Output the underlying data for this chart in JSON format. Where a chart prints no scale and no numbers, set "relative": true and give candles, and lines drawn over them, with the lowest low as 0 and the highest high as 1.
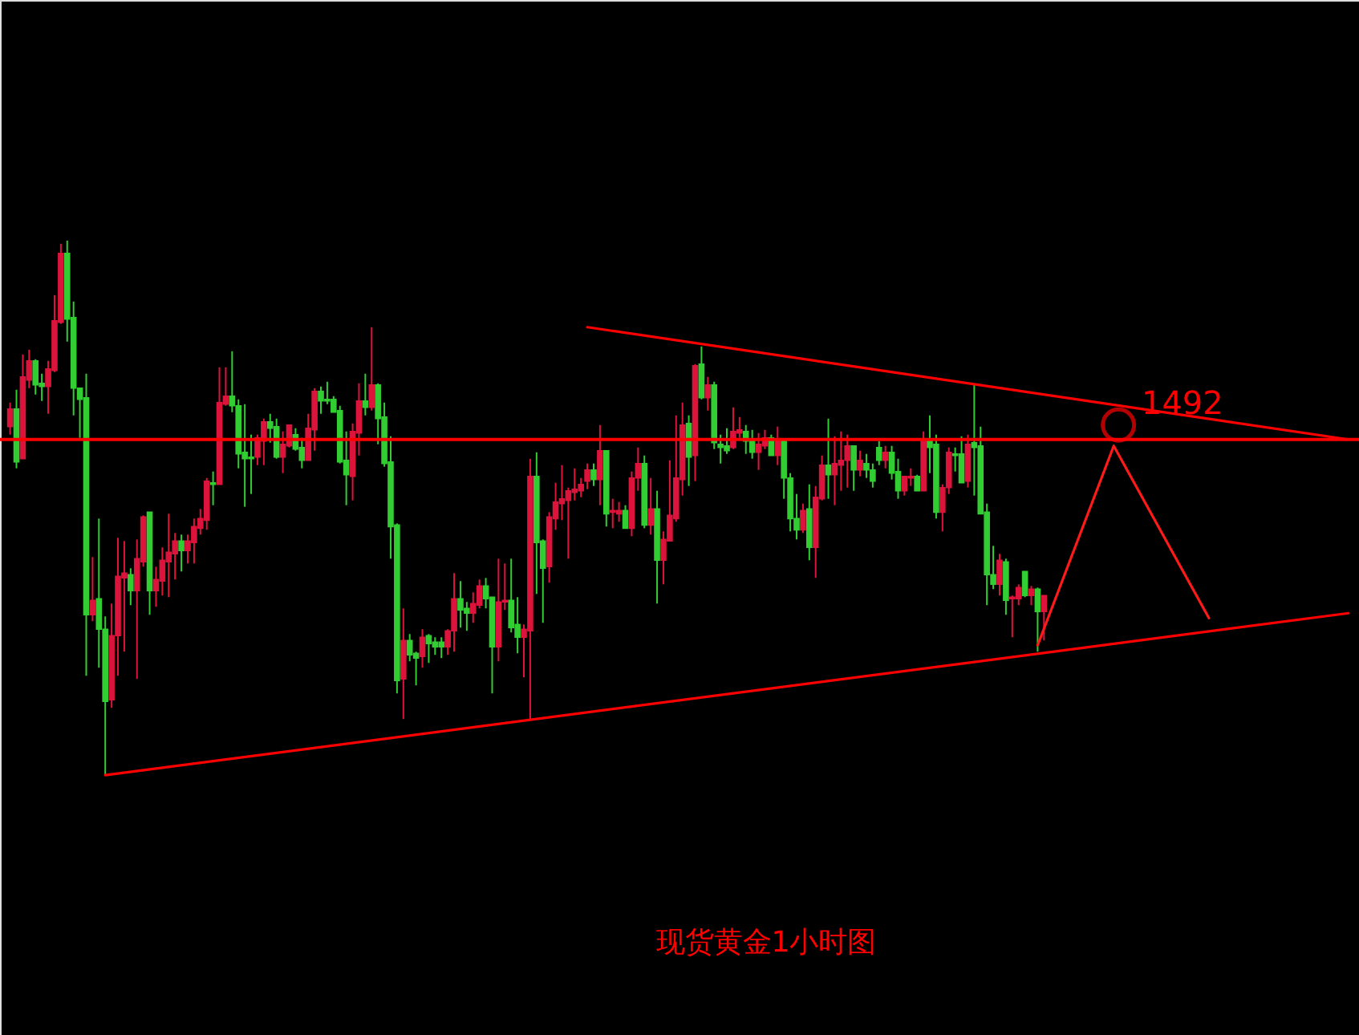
{
  "chart_data": {
    "type": "candlestick",
    "relative": true,
    "title": "现货黄金1小时图",
    "tick_labels": false,
    "categories": [
      null,
      null,
      null,
      null,
      null,
      null,
      null,
      null,
      null,
      null,
      null,
      null,
      null,
      null,
      null,
      null,
      null,
      null,
      null,
      null,
      null,
      null,
      null,
      null,
      null,
      null,
      null,
      null,
      null,
      null,
      null,
      null,
      null,
      null,
      null,
      null,
      null,
      null,
      null,
      null,
      null,
      null,
      null,
      null,
      null,
      null,
      null,
      null,
      null,
      null,
      null,
      null,
      null,
      null,
      null,
      null,
      null,
      null,
      null,
      null,
      null,
      null,
      null,
      null,
      null,
      null,
      null,
      null,
      null,
      null,
      null,
      null,
      null,
      null,
      null,
      null,
      null,
      null,
      null,
      null,
      null,
      null,
      null,
      null,
      null,
      null,
      null,
      null,
      null,
      null,
      null,
      null,
      null,
      null,
      null,
      null,
      null,
      null,
      null,
      null,
      null,
      null,
      null,
      null,
      null,
      null,
      null,
      null,
      null,
      null,
      null,
      null,
      null,
      null,
      null,
      null,
      null,
      null,
      null,
      null,
      null,
      null,
      null,
      null,
      null,
      null,
      null,
      null,
      null,
      null,
      null,
      null,
      null,
      null,
      null,
      null,
      null,
      null,
      null,
      null,
      null,
      null,
      null,
      null,
      null,
      null,
      null,
      null,
      null,
      null,
      null,
      null,
      null,
      null,
      null,
      null,
      null,
      null,
      null,
      null,
      null,
      null,
      null,
      null,
      null,
      null,
      null,
      null,
      null,
      null,
      null,
      null,
      null,
      null,
      null,
      null,
      null,
      null,
      null,
      null,
      null,
      null,
      null,
      null,
      null,
      null,
      null,
      null,
      null,
      null,
      null,
      null,
      null,
      null,
      null,
      null,
      null,
      null,
      null,
      null,
      null,
      null,
      null,
      null,
      null,
      null,
      null,
      null,
      null,
      null,
      null,
      null
    ],
    "ohlc": [
      [
        0.652,
        0.697,
        0.637,
        0.685
      ],
      [
        0.685,
        0.721,
        0.574,
        0.586
      ],
      [
        0.592,
        0.787,
        0.592,
        0.745
      ],
      [
        0.739,
        0.796,
        0.724,
        0.775
      ],
      [
        0.775,
        0.778,
        0.712,
        0.73
      ],
      [
        0.733,
        0.751,
        0.7,
        0.727
      ],
      [
        0.727,
        0.775,
        0.676,
        0.76
      ],
      [
        0.757,
        0.898,
        0.754,
        0.85
      ],
      [
        0.847,
        0.994,
        0.844,
        0.976
      ],
      [
        0.976,
        1,
        0.811,
        0.853
      ],
      [
        0.856,
        0.886,
        0.673,
        0.724
      ],
      [
        0.724,
        0.724,
        0.631,
        0.703
      ],
      [
        0.706,
        0.751,
        0.186,
        0.3
      ],
      [
        0.3,
        0.408,
        0.288,
        0.327
      ],
      [
        0.33,
        0.48,
        0.201,
        0.273
      ],
      [
        0.273,
        0.297,
        0,
        0.138
      ],
      [
        0.141,
        0.321,
        0.126,
        0.261
      ],
      [
        0.261,
        0.444,
        0.186,
        0.372
      ],
      [
        0.369,
        0.438,
        0.231,
        0.378
      ],
      [
        0.375,
        0.387,
        0.318,
        0.345
      ],
      [
        0.345,
        0.441,
        0.18,
        0.405
      ],
      [
        0.399,
        0.486,
        0.39,
        0.483
      ],
      [
        0.492,
        0.492,
        0.3,
        0.345
      ],
      [
        0.345,
        0.39,
        0.315,
        0.366
      ],
      [
        0.363,
        0.426,
        0.336,
        0.402
      ],
      [
        0.399,
        0.489,
        0.333,
        0.417
      ],
      [
        0.414,
        0.453,
        0.366,
        0.438
      ],
      [
        0.438,
        0.45,
        0.381,
        0.42
      ],
      [
        0.42,
        0.45,
        0.396,
        0.438
      ],
      [
        0.435,
        0.48,
        0.396,
        0.465
      ],
      [
        0.462,
        0.498,
        0.45,
        0.48
      ],
      [
        0.477,
        0.556,
        0.459,
        0.55
      ],
      [
        0.547,
        0.568,
        0.505,
        0.544
      ],
      [
        0.544,
        0.763,
        0.544,
        0.697
      ],
      [
        0.694,
        0.763,
        0.691,
        0.709
      ],
      [
        0.709,
        0.793,
        0.679,
        0.691
      ],
      [
        0.691,
        0.703,
        0.574,
        0.601
      ],
      [
        0.604,
        0.694,
        0.502,
        0.592
      ],
      [
        0.595,
        0.637,
        0.526,
        0.592
      ],
      [
        0.595,
        0.637,
        0.58,
        0.631
      ],
      [
        0.625,
        0.667,
        0.58,
        0.661
      ],
      [
        0.661,
        0.676,
        0.622,
        0.649
      ],
      [
        0.652,
        0.667,
        0.592,
        0.595
      ],
      [
        0.595,
        0.643,
        0.565,
        0.619
      ],
      [
        0.616,
        0.655,
        0.613,
        0.655
      ],
      [
        0.637,
        0.649,
        0.607,
        0.61
      ],
      [
        0.613,
        0.631,
        0.574,
        0.589
      ],
      [
        0.589,
        0.676,
        0.589,
        0.649
      ],
      [
        0.646,
        0.724,
        0.607,
        0.718
      ],
      [
        0.718,
        0.727,
        0.676,
        0.7
      ],
      [
        0.703,
        0.736,
        0.694,
        0.7
      ],
      [
        0.703,
        0.709,
        0.679,
        0.679
      ],
      [
        0.682,
        0.691,
        0.583,
        0.586
      ],
      [
        0.589,
        0.643,
        0.505,
        0.562
      ],
      [
        0.559,
        0.658,
        0.514,
        0.643
      ],
      [
        0.64,
        0.733,
        0.598,
        0.7
      ],
      [
        0.7,
        0.751,
        0.673,
        0.688
      ],
      [
        0.688,
        0.838,
        0.682,
        0.73
      ],
      [
        0.73,
        0.733,
        0.619,
        0.667
      ],
      [
        0.67,
        0.697,
        0.577,
        0.583
      ],
      [
        0.586,
        0.634,
        0.405,
        0.465
      ],
      [
        0.468,
        0.471,
        0.153,
        0.177
      ],
      [
        0.18,
        0.312,
        0.105,
        0.252
      ],
      [
        0.252,
        0.264,
        0.213,
        0.225
      ],
      [
        0.228,
        0.231,
        0.168,
        0.219
      ],
      [
        0.222,
        0.273,
        0.201,
        0.258
      ],
      [
        0.261,
        0.264,
        0.21,
        0.246
      ],
      [
        0.249,
        0.258,
        0.225,
        0.24
      ],
      [
        0.249,
        0.258,
        0.219,
        0.24
      ],
      [
        0.24,
        0.273,
        0.225,
        0.27
      ],
      [
        0.27,
        0.378,
        0.231,
        0.33
      ],
      [
        0.33,
        0.363,
        0.276,
        0.309
      ],
      [
        0.312,
        0.324,
        0.27,
        0.303
      ],
      [
        0.303,
        0.342,
        0.285,
        0.321
      ],
      [
        0.318,
        0.366,
        0.312,
        0.354
      ],
      [
        0.354,
        0.369,
        0.312,
        0.33
      ],
      [
        0.333,
        0.333,
        0.153,
        0.24
      ],
      [
        0.24,
        0.405,
        0.213,
        0.324
      ],
      [
        0.324,
        0.396,
        0.309,
        0.327
      ],
      [
        0.327,
        0.405,
        0.267,
        0.276
      ],
      [
        0.282,
        0.333,
        0.228,
        0.258
      ],
      [
        0.258,
        0.282,
        0.183,
        0.273
      ],
      [
        0.27,
        0.592,
        0.105,
        0.559
      ],
      [
        0.559,
        0.604,
        0.339,
        0.435
      ],
      [
        0.438,
        0.441,
        0.285,
        0.387
      ],
      [
        0.39,
        0.492,
        0.36,
        0.483
      ],
      [
        0.48,
        0.547,
        0.459,
        0.511
      ],
      [
        0.508,
        0.58,
        0.477,
        0.517
      ],
      [
        0.514,
        0.538,
        0.405,
        0.532
      ],
      [
        0.529,
        0.574,
        0.514,
        0.535
      ],
      [
        0.532,
        0.556,
        0.52,
        0.544
      ],
      [
        0.55,
        0.583,
        0.535,
        0.571
      ],
      [
        0.571,
        0.583,
        0.541,
        0.553
      ],
      [
        0.553,
        0.655,
        0.505,
        0.607
      ],
      [
        0.607,
        0.607,
        0.465,
        0.489
      ],
      [
        0.492,
        0.517,
        0.462,
        0.495
      ],
      [
        0.489,
        0.511,
        0.474,
        0.495
      ],
      [
        0.495,
        0.505,
        0.462,
        0.462
      ],
      [
        0.462,
        0.568,
        0.447,
        0.556
      ],
      [
        0.556,
        0.613,
        0.532,
        0.583
      ],
      [
        0.583,
        0.598,
        0.462,
        0.468
      ],
      [
        0.468,
        0.556,
        0.45,
        0.498
      ],
      [
        0.498,
        0.532,
        0.321,
        0.402
      ],
      [
        0.402,
        0.456,
        0.357,
        0.441
      ],
      [
        0.438,
        0.589,
        0.438,
        0.486
      ],
      [
        0.48,
        0.673,
        0.474,
        0.556
      ],
      [
        0.553,
        0.697,
        0.523,
        0.655
      ],
      [
        0.658,
        0.673,
        0.541,
        0.595
      ],
      [
        0.598,
        0.769,
        0.55,
        0.766
      ],
      [
        0.769,
        0.802,
        0.703,
        0.706
      ],
      [
        0.706,
        0.745,
        0.682,
        0.73
      ],
      [
        0.73,
        0.736,
        0.61,
        0.622
      ],
      [
        0.619,
        0.637,
        0.583,
        0.613
      ],
      [
        0.616,
        0.649,
        0.601,
        0.607
      ],
      [
        0.613,
        0.688,
        0.61,
        0.643
      ],
      [
        0.64,
        0.67,
        0.631,
        0.646
      ],
      [
        0.643,
        0.655,
        0.601,
        0.625
      ],
      [
        0.628,
        0.646,
        0.592,
        0.604
      ],
      [
        0.604,
        0.64,
        0.571,
        0.619
      ],
      [
        0.616,
        0.646,
        0.61,
        0.631
      ],
      [
        0.631,
        0.637,
        0.598,
        0.598
      ],
      [
        0.598,
        0.652,
        0.58,
        0.628
      ],
      [
        0.625,
        0.628,
        0.517,
        0.556
      ],
      [
        0.556,
        0.565,
        0.456,
        0.48
      ],
      [
        0.48,
        0.526,
        0.441,
        0.459
      ],
      [
        0.459,
        0.508,
        0.453,
        0.495
      ],
      [
        0.498,
        0.544,
        0.402,
        0.426
      ],
      [
        0.426,
        0.541,
        0.369,
        0.52
      ],
      [
        0.517,
        0.598,
        0.514,
        0.58
      ],
      [
        0.58,
        0.667,
        0.517,
        0.562
      ],
      [
        0.562,
        0.634,
        0.505,
        0.583
      ],
      [
        0.58,
        0.643,
        0.532,
        0.589
      ],
      [
        0.589,
        0.637,
        0.538,
        0.616
      ],
      [
        0.616,
        0.616,
        0.532,
        0.571
      ],
      [
        0.571,
        0.607,
        0.559,
        0.589
      ],
      [
        0.583,
        0.601,
        0.556,
        0.571
      ],
      [
        0.571,
        0.583,
        0.538,
        0.55
      ],
      [
        0.613,
        0.625,
        0.58,
        0.589
      ],
      [
        0.589,
        0.616,
        0.574,
        0.604
      ],
      [
        0.604,
        0.616,
        0.553,
        0.565
      ],
      [
        0.568,
        0.592,
        0.517,
        0.532
      ],
      [
        0.532,
        0.559,
        0.523,
        0.559
      ],
      [
        0.556,
        0.574,
        0.541,
        0.559
      ],
      [
        0.559,
        0.562,
        0.532,
        0.532
      ],
      [
        0.532,
        0.643,
        0.532,
        0.628
      ],
      [
        0.625,
        0.673,
        0.565,
        0.613
      ],
      [
        0.619,
        0.637,
        0.48,
        0.492
      ],
      [
        0.492,
        0.544,
        0.456,
        0.538
      ],
      [
        0.538,
        0.613,
        0.526,
        0.604
      ],
      [
        0.601,
        0.613,
        0.568,
        0.598
      ],
      [
        0.601,
        0.634,
        0.547,
        0.547
      ],
      [
        0.55,
        0.637,
        0.538,
        0.619
      ],
      [
        0.622,
        0.73,
        0.523,
        0.613
      ],
      [
        0.616,
        0.652,
        0.489,
        0.489
      ],
      [
        0.492,
        0.508,
        0.318,
        0.375
      ],
      [
        0.375,
        0.429,
        0.348,
        0.357
      ],
      [
        0.357,
        0.414,
        0.336,
        0.402
      ],
      [
        0.399,
        0.405,
        0.3,
        0.327
      ],
      [
        0.33,
        0.336,
        0.258,
        0.333
      ],
      [
        0.33,
        0.357,
        0.318,
        0.351
      ],
      [
        0.381,
        0.381,
        0.333,
        0.336
      ],
      [
        0.336,
        0.354,
        0.318,
        0.348
      ],
      [
        0.348,
        0.351,
        0.231,
        0.306
      ],
      [
        0.306,
        0.336,
        0.252,
        0.336
      ],
      null,
      null,
      null,
      null,
      null,
      null,
      null,
      null,
      null,
      null,
      null,
      null,
      null,
      null,
      null,
      null,
      null,
      null,
      null,
      null,
      null,
      null,
      null,
      null,
      null,
      null,
      null,
      null,
      null,
      null,
      null,
      null,
      null,
      null,
      null,
      null,
      null,
      null,
      null,
      null,
      null,
      null,
      null,
      null,
      null,
      null,
      null,
      null
    ],
    "colors": [
      "#dc143c",
      "#32cd32",
      "#dc143c",
      "#dc143c",
      "#32cd32",
      "#32cd32",
      "#dc143c",
      "#dc143c",
      "#dc143c",
      "#32cd32",
      "#32cd32",
      "#32cd32",
      "#32cd32",
      "#dc143c",
      "#32cd32",
      "#32cd32",
      "#dc143c",
      "#dc143c",
      "#dc143c",
      "#32cd32",
      "#dc143c",
      "#dc143c",
      "#32cd32",
      "#dc143c",
      "#dc143c",
      "#dc143c",
      "#dc143c",
      "#32cd32",
      "#dc143c",
      "#dc143c",
      "#dc143c",
      "#dc143c",
      "#32cd32",
      "#dc143c",
      "#dc143c",
      "#32cd32",
      "#32cd32",
      "#32cd32",
      "#32cd32",
      "#dc143c",
      "#dc143c",
      "#32cd32",
      "#32cd32",
      "#dc143c",
      "#dc143c",
      "#32cd32",
      "#32cd32",
      "#dc143c",
      "#dc143c",
      "#32cd32",
      "#32cd32",
      "#32cd32",
      "#32cd32",
      "#32cd32",
      "#dc143c",
      "#dc143c",
      "#32cd32",
      "#dc143c",
      "#32cd32",
      "#32cd32",
      "#32cd32",
      "#32cd32",
      "#dc143c",
      "#32cd32",
      "#32cd32",
      "#dc143c",
      "#32cd32",
      "#32cd32",
      "#32cd32",
      "#dc143c",
      "#dc143c",
      "#32cd32",
      "#32cd32",
      "#dc143c",
      "#dc143c",
      "#32cd32",
      "#32cd32",
      "#dc143c",
      "#dc143c",
      "#32cd32",
      "#32cd32",
      "#dc143c",
      "#dc143c",
      "#32cd32",
      "#32cd32",
      "#dc143c",
      "#dc143c",
      "#dc143c",
      "#dc143c",
      "#dc143c",
      "#dc143c",
      "#dc143c",
      "#32cd32",
      "#dc143c",
      "#32cd32",
      "#dc143c",
      "#dc143c",
      "#32cd32",
      "#dc143c",
      "#dc143c",
      "#32cd32",
      "#dc143c",
      "#32cd32",
      "#dc143c",
      "#dc143c",
      "#dc143c",
      "#dc143c",
      "#32cd32",
      "#dc143c",
      "#32cd32",
      "#dc143c",
      "#32cd32",
      "#32cd32",
      "#32cd32",
      "#dc143c",
      "#dc143c",
      "#32cd32",
      "#32cd32",
      "#dc143c",
      "#dc143c",
      "#32cd32",
      "#dc143c",
      "#32cd32",
      "#32cd32",
      "#32cd32",
      "#dc143c",
      "#32cd32",
      "#dc143c",
      "#dc143c",
      "#32cd32",
      "#dc143c",
      "#dc143c",
      "#dc143c",
      "#32cd32",
      "#dc143c",
      "#32cd32",
      "#32cd32",
      "#32cd32",
      "#dc143c",
      "#32cd32",
      "#32cd32",
      "#dc143c",
      "#dc143c",
      "#32cd32",
      "#dc143c",
      "#32cd32",
      "#32cd32",
      "#dc143c",
      "#dc143c",
      "#32cd32",
      "#32cd32",
      "#dc143c",
      "#32cd32",
      "#32cd32",
      "#32cd32",
      "#32cd32",
      "#dc143c",
      "#32cd32",
      "#dc143c",
      "#dc143c",
      "#32cd32",
      "#dc143c",
      "#32cd32",
      "#dc143c",
      null,
      null,
      null,
      null,
      null,
      null,
      null,
      null,
      null,
      null,
      null,
      null,
      null,
      null,
      null,
      null,
      null,
      null,
      null,
      null,
      null,
      null,
      null,
      null,
      null,
      null,
      null,
      null,
      null,
      null,
      null,
      null,
      null,
      null,
      null,
      null,
      null,
      null,
      null,
      null,
      null,
      null,
      null,
      null,
      null,
      null,
      null,
      null
    ],
    "series": [
      {
        "type": "line",
        "color": "#ff0000",
        "values": [
          null,
          null,
          null,
          null,
          null,
          null,
          null,
          null,
          null,
          null,
          null,
          null,
          null,
          null,
          null,
          null,
          null,
          null,
          null,
          null,
          null,
          null,
          null,
          null,
          null,
          null,
          null,
          null,
          null,
          null,
          null,
          null,
          null,
          null,
          null,
          null,
          null,
          null,
          null,
          null,
          null,
          null,
          null,
          null,
          null,
          null,
          null,
          null,
          null,
          null,
          null,
          null,
          null,
          null,
          null,
          null,
          null,
          null,
          null,
          null,
          null,
          null,
          null,
          null,
          null,
          null,
          null,
          null,
          null,
          null,
          null,
          null,
          null,
          null,
          null,
          null,
          null,
          null,
          null,
          null,
          null,
          null,
          null,
          null,
          null,
          null,
          null,
          null,
          null,
          null,
          null,
          0.838,
          null,
          null,
          null,
          null,
          null,
          null,
          null,
          null,
          null,
          null,
          null,
          null,
          null,
          null,
          null,
          null,
          null,
          null,
          null,
          null,
          null,
          null,
          null,
          null,
          null,
          null,
          null,
          null,
          null,
          null,
          null,
          null,
          null,
          null,
          null,
          null,
          null,
          null,
          null,
          null,
          null,
          null,
          null,
          null,
          null,
          null,
          null,
          null,
          null,
          null,
          null,
          null,
          null,
          null,
          null,
          null,
          null,
          null,
          null,
          null,
          null,
          null,
          null,
          null,
          null,
          null,
          null,
          null,
          null,
          null,
          null,
          null,
          null,
          null,
          null,
          null,
          null,
          null,
          null,
          null,
          null,
          null,
          null,
          null,
          null,
          null,
          null,
          null,
          null,
          null,
          null,
          null,
          null,
          null,
          null,
          null,
          null,
          null,
          null,
          null,
          null,
          null,
          null,
          null,
          null,
          null,
          null,
          null,
          null,
          null,
          null,
          null,
          null,
          null,
          null,
          null,
          null,
          null,
          null,
          0.628
        ]
      },
      {
        "type": "line",
        "color": "#ff0000",
        "values": [
          null,
          null,
          null,
          null,
          null,
          null,
          null,
          null,
          null,
          null,
          null,
          null,
          null,
          null,
          null,
          0,
          null,
          null,
          null,
          null,
          null,
          null,
          null,
          null,
          null,
          null,
          null,
          null,
          null,
          null,
          null,
          null,
          null,
          null,
          null,
          null,
          null,
          null,
          null,
          null,
          null,
          null,
          null,
          null,
          null,
          null,
          null,
          null,
          null,
          null,
          null,
          null,
          null,
          null,
          null,
          null,
          null,
          null,
          null,
          null,
          null,
          null,
          null,
          null,
          null,
          null,
          null,
          null,
          null,
          null,
          null,
          null,
          null,
          null,
          null,
          null,
          null,
          null,
          null,
          null,
          null,
          null,
          null,
          null,
          null,
          null,
          null,
          null,
          null,
          null,
          null,
          null,
          null,
          null,
          null,
          null,
          null,
          null,
          null,
          null,
          null,
          null,
          null,
          null,
          null,
          null,
          null,
          null,
          null,
          null,
          null,
          null,
          null,
          null,
          null,
          null,
          null,
          null,
          null,
          null,
          null,
          null,
          null,
          null,
          null,
          null,
          null,
          null,
          null,
          null,
          null,
          null,
          null,
          null,
          null,
          null,
          null,
          null,
          null,
          null,
          null,
          null,
          null,
          null,
          null,
          null,
          null,
          null,
          null,
          null,
          null,
          null,
          null,
          null,
          null,
          null,
          null,
          null,
          null,
          null,
          null,
          null,
          null,
          null,
          null,
          null,
          null,
          null,
          null,
          null,
          null,
          null,
          null,
          null,
          null,
          null,
          null,
          null,
          null,
          null,
          null,
          null,
          null,
          null,
          null,
          null,
          null,
          null,
          null,
          null,
          null,
          null,
          null,
          null,
          null,
          null,
          null,
          null,
          null,
          null,
          null,
          null,
          null,
          null,
          null,
          null,
          null,
          null,
          null,
          null,
          null,
          0.303
        ]
      },
      {
        "type": "line",
        "color": "#ff1a1a",
        "values": [
          null,
          null,
          null,
          null,
          null,
          null,
          null,
          null,
          null,
          null,
          null,
          null,
          null,
          null,
          null,
          null,
          null,
          null,
          null,
          null,
          null,
          null,
          null,
          null,
          null,
          null,
          null,
          null,
          null,
          null,
          null,
          null,
          null,
          null,
          null,
          null,
          null,
          null,
          null,
          null,
          null,
          null,
          null,
          null,
          null,
          null,
          null,
          null,
          null,
          null,
          null,
          null,
          null,
          null,
          null,
          null,
          null,
          null,
          null,
          null,
          null,
          null,
          null,
          null,
          null,
          null,
          null,
          null,
          null,
          null,
          null,
          null,
          null,
          null,
          null,
          null,
          null,
          null,
          null,
          null,
          null,
          null,
          null,
          null,
          null,
          null,
          null,
          null,
          null,
          null,
          null,
          null,
          null,
          null,
          null,
          null,
          null,
          null,
          null,
          null,
          null,
          null,
          null,
          null,
          null,
          null,
          null,
          null,
          null,
          null,
          null,
          null,
          null,
          null,
          null,
          null,
          null,
          null,
          null,
          null,
          null,
          null,
          null,
          null,
          null,
          null,
          null,
          null,
          null,
          null,
          null,
          null,
          null,
          null,
          null,
          null,
          null,
          null,
          null,
          null,
          null,
          null,
          null,
          null,
          null,
          null,
          null,
          null,
          null,
          null,
          null,
          null,
          null,
          null,
          null,
          null,
          null,
          null,
          null,
          null,
          null,
          null,
          0.243,
          null,
          null,
          null,
          null,
          null,
          null,
          null,
          null,
          null,
          null,
          null,
          0.616,
          null,
          null,
          null,
          null,
          null,
          null,
          null,
          null,
          null,
          null,
          null,
          null,
          null,
          null,
          0.294,
          null,
          null,
          null,
          null,
          null,
          null,
          null,
          null,
          null,
          null,
          null,
          null,
          null,
          null,
          null,
          null,
          null,
          null,
          null,
          null,
          null,
          null
        ]
      }
    ],
    "ref_lines": [
      {
        "axis": "y",
        "value": 0.628,
        "color": "#ff0000"
      }
    ],
    "annotations": [
      "1492"
    ]
  }
}
